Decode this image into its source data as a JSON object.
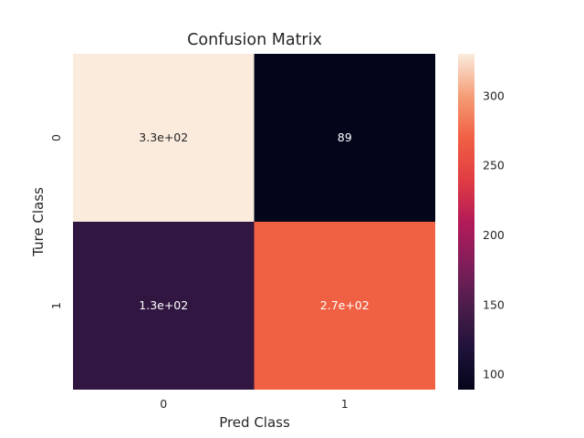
{
  "chart_data": {
    "type": "heatmap",
    "title": "Confusion Matrix",
    "xlabel": "Pred Class",
    "ylabel": "Ture Class",
    "x_categories": [
      "0",
      "1"
    ],
    "y_categories": [
      "0",
      "1"
    ],
    "values": [
      [
        330,
        89
      ],
      [
        130,
        270
      ]
    ],
    "annotations": [
      [
        "3.3e+02",
        "89"
      ],
      [
        "1.3e+02",
        "2.7e+02"
      ]
    ],
    "colormap": "rocket",
    "colorbar": {
      "range": [
        89,
        330
      ],
      "ticks": [
        100,
        150,
        200,
        250,
        300
      ],
      "tick_labels": [
        "100",
        "150",
        "200",
        "250",
        "300"
      ]
    },
    "grid": false
  }
}
